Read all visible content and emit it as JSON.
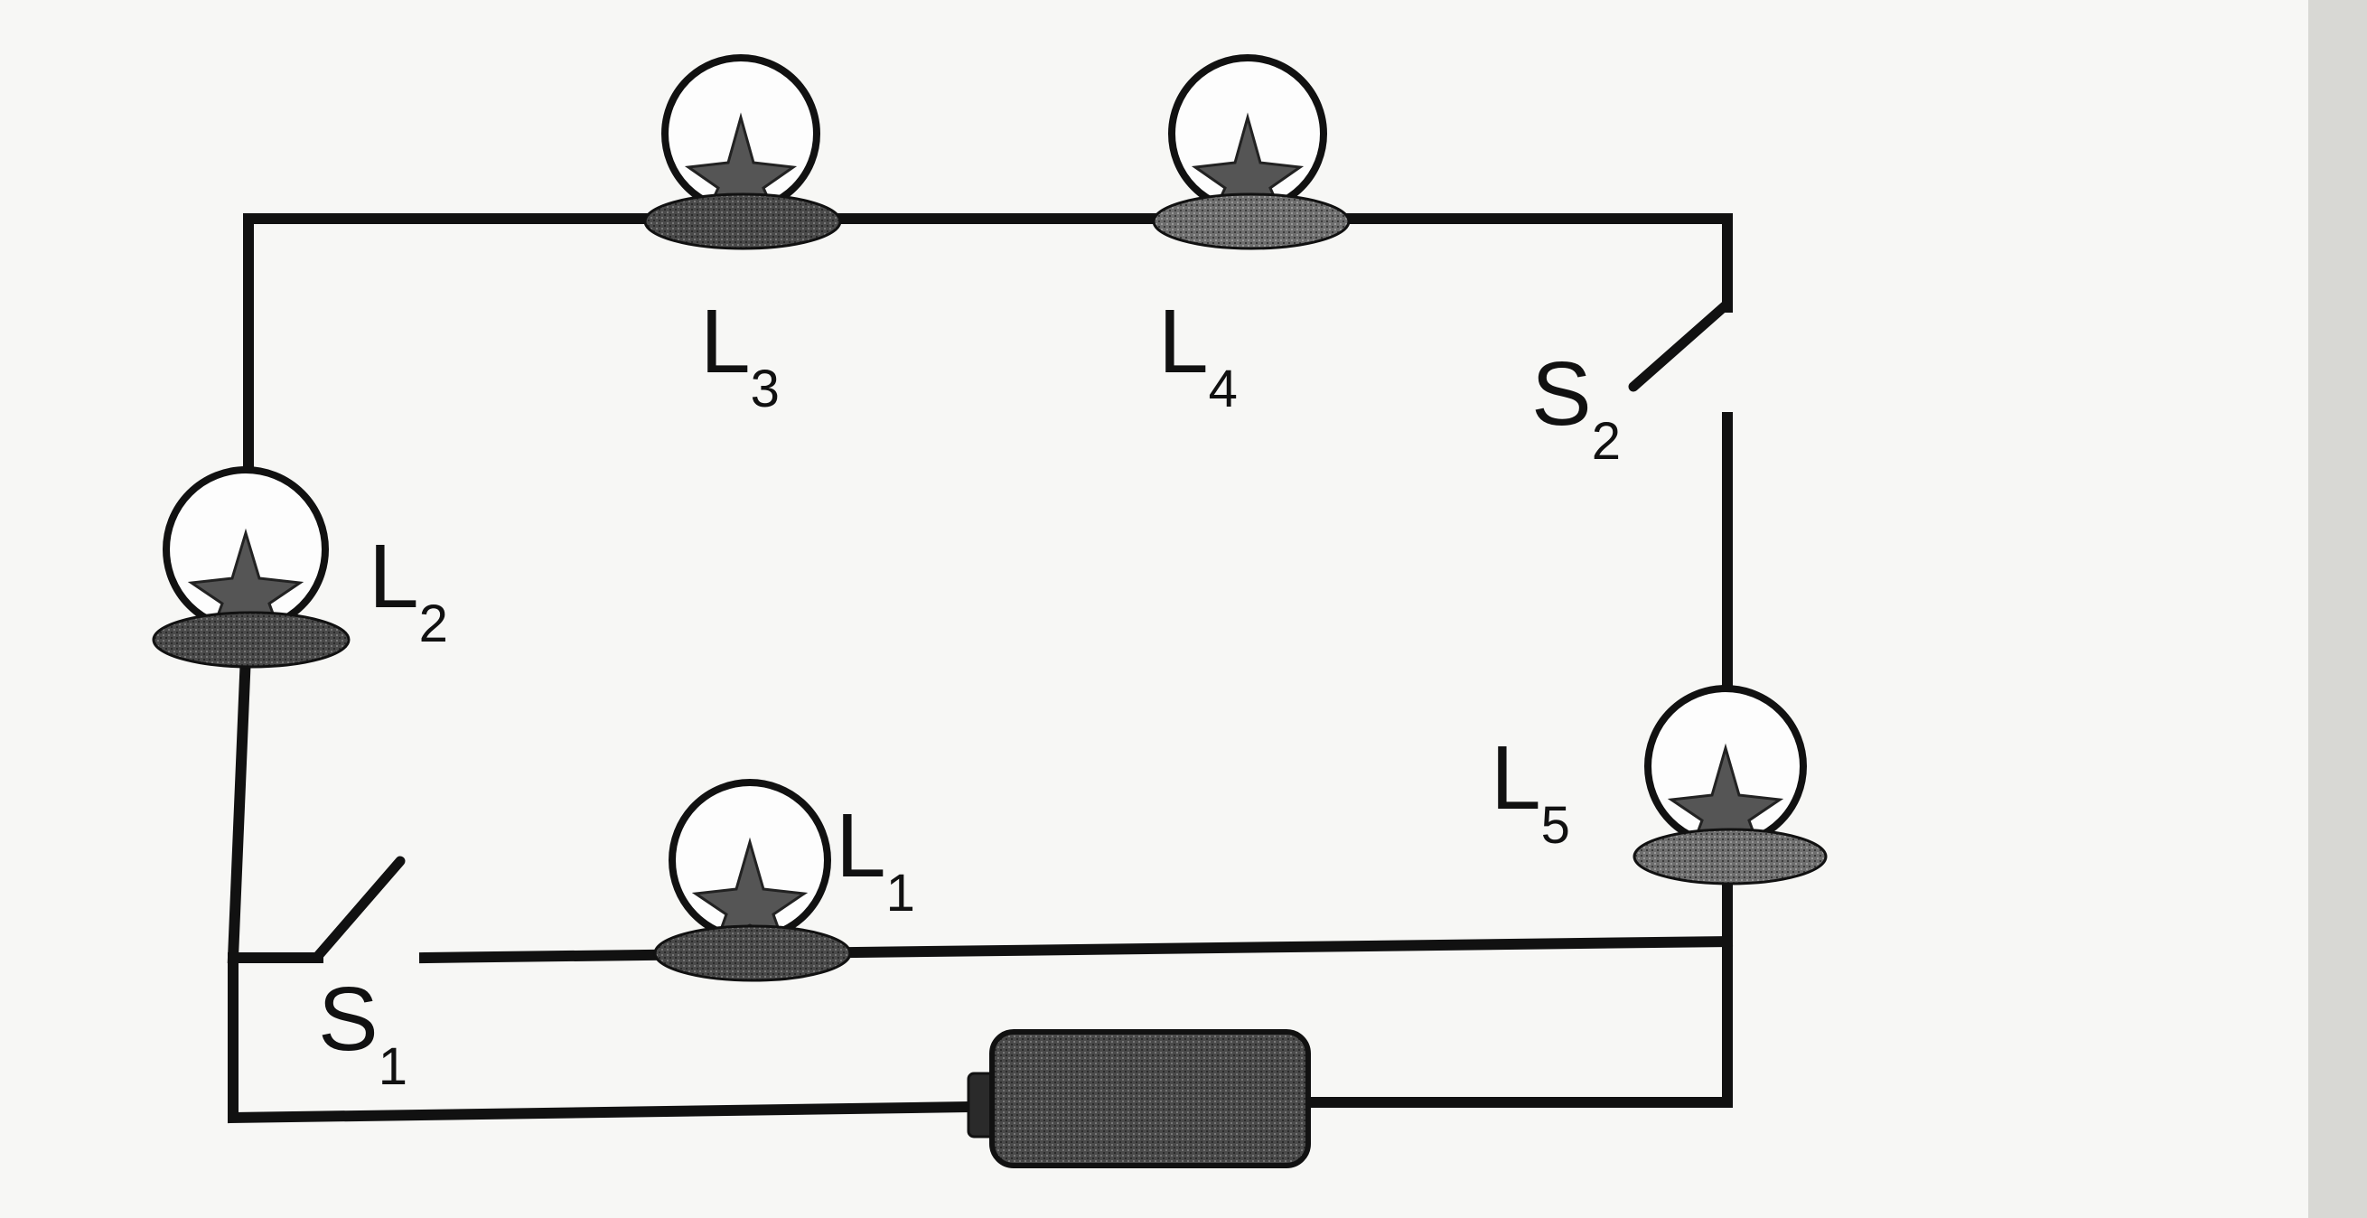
{
  "colors": {
    "ink": "#111111",
    "paper": "#f7f7f5",
    "bulb_base": "#6e6e6e",
    "battery": "#4a4a4a"
  },
  "components": {
    "bulbs": [
      {
        "id": "L1",
        "letter": "L",
        "subscript": "1"
      },
      {
        "id": "L2",
        "letter": "L",
        "subscript": "2"
      },
      {
        "id": "L3",
        "letter": "L",
        "subscript": "3"
      },
      {
        "id": "L4",
        "letter": "L",
        "subscript": "4"
      },
      {
        "id": "L5",
        "letter": "L",
        "subscript": "5"
      }
    ],
    "switches": [
      {
        "id": "S1",
        "letter": "S",
        "subscript": "1",
        "state": "open"
      },
      {
        "id": "S2",
        "letter": "S",
        "subscript": "2",
        "state": "open"
      }
    ],
    "battery": {
      "id": "battery",
      "icon": "battery-icon"
    }
  }
}
